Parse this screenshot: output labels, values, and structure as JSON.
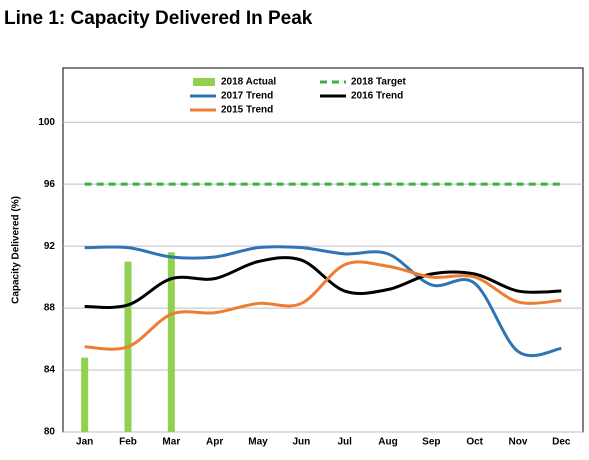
{
  "chart_data": {
    "type": "combo",
    "title": "Line 1: Capacity Delivered In Peak",
    "y_label": "Capacity Delivered (%)",
    "categories": [
      "Jan",
      "Feb",
      "Mar",
      "Apr",
      "May",
      "Jun",
      "Jul",
      "Aug",
      "Sep",
      "Oct",
      "Nov",
      "Dec"
    ],
    "ylim": [
      80,
      103.5
    ],
    "yticks": [
      80,
      84,
      88,
      92,
      96,
      100
    ],
    "grid": true,
    "series": [
      {
        "name": "2018 Actual",
        "type": "bar",
        "color": "#92d050",
        "values": [
          84.8,
          91.0,
          91.6,
          null,
          null,
          null,
          null,
          null,
          null,
          null,
          null,
          null
        ]
      },
      {
        "name": "2018 Target",
        "type": "line",
        "dashed": true,
        "color": "#3cb043",
        "values": [
          96,
          96,
          96,
          96,
          96,
          96,
          96,
          96,
          96,
          96,
          96,
          96
        ]
      },
      {
        "name": "2017 Trend",
        "type": "line",
        "color": "#2e75b6",
        "values": [
          91.9,
          91.9,
          91.3,
          91.3,
          91.9,
          91.9,
          91.5,
          91.5,
          89.5,
          89.6,
          85.2,
          85.4
        ]
      },
      {
        "name": "2016 Trend",
        "type": "line",
        "color": "#000000",
        "values": [
          88.1,
          88.2,
          89.9,
          89.9,
          91.0,
          91.1,
          89.1,
          89.2,
          90.2,
          90.2,
          89.1,
          89.1
        ]
      },
      {
        "name": "2015 Trend",
        "type": "line",
        "color": "#ed7d31",
        "values": [
          85.5,
          85.5,
          87.6,
          87.7,
          88.3,
          88.3,
          90.8,
          90.7,
          90.0,
          90.0,
          88.4,
          88.5
        ]
      }
    ]
  }
}
